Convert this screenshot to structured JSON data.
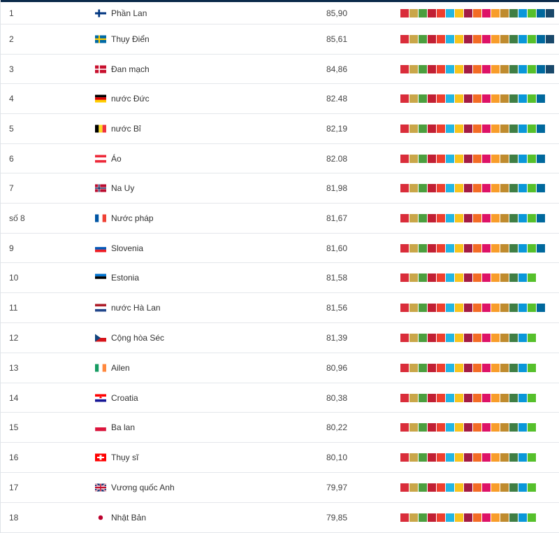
{
  "sdg_colors": [
    "#d92d3a",
    "#c9a649",
    "#4b9e3e",
    "#c11f33",
    "#ef3f2d",
    "#23b6e2",
    "#f8c21d",
    "#a31c44",
    "#f36c25",
    "#dd1367",
    "#f89d2a",
    "#bf8b2e",
    "#3f7e44",
    "#0a97d9",
    "#56c02b",
    "#00689d",
    "#19486a"
  ],
  "rows": [
    {
      "rank": "1",
      "flag": "finland-flag-icon",
      "country": "Phần Lan",
      "score": "85,90",
      "goals": [
        "#d92d3a",
        "#c9a649",
        "#4b9e3e",
        "#c11f33",
        "#ef3f2d",
        "#23b6e2",
        "#f8c21d",
        "#a31c44",
        "#f36c25",
        "#dd1367",
        "#f89d2a",
        "#bf8b2e",
        "#3f7e44",
        "#0a97d9",
        "#56c02b",
        "#00689d",
        "#19486a"
      ]
    },
    {
      "rank": "2",
      "flag": "sweden-flag-icon",
      "country": "Thụy Điển",
      "score": "85,61",
      "goals": [
        "#d92d3a",
        "#c9a649",
        "#4b9e3e",
        "#c11f33",
        "#ef3f2d",
        "#23b6e2",
        "#f8c21d",
        "#a31c44",
        "#f36c25",
        "#dd1367",
        "#f89d2a",
        "#bf8b2e",
        "#3f7e44",
        "#0a97d9",
        "#56c02b",
        "#00689d",
        "#19486a"
      ]
    },
    {
      "rank": "3",
      "flag": "denmark-flag-icon",
      "country": "Đan mạch",
      "score": "84,86",
      "goals": [
        "#d92d3a",
        "#c9a649",
        "#4b9e3e",
        "#c11f33",
        "#ef3f2d",
        "#23b6e2",
        "#f8c21d",
        "#a31c44",
        "#f36c25",
        "#dd1367",
        "#f89d2a",
        "#bf8b2e",
        "#3f7e44",
        "#0a97d9",
        "#56c02b",
        "#00689d",
        "#19486a"
      ]
    },
    {
      "rank": "4",
      "flag": "germany-flag-icon",
      "country": "nước Đức",
      "score": "82.48",
      "goals": [
        "#d92d3a",
        "#c9a649",
        "#4b9e3e",
        "#c11f33",
        "#ef3f2d",
        "#23b6e2",
        "#f8c21d",
        "#a31c44",
        "#f36c25",
        "#dd1367",
        "#f89d2a",
        "#bf8b2e",
        "#3f7e44",
        "#0a97d9",
        "#56c02b",
        "#00689d"
      ]
    },
    {
      "rank": "5",
      "flag": "belgium-flag-icon",
      "country": "nước Bỉ",
      "score": "82,19",
      "goals": [
        "#d92d3a",
        "#c9a649",
        "#4b9e3e",
        "#c11f33",
        "#ef3f2d",
        "#23b6e2",
        "#f8c21d",
        "#a31c44",
        "#f36c25",
        "#dd1367",
        "#f89d2a",
        "#bf8b2e",
        "#3f7e44",
        "#0a97d9",
        "#56c02b",
        "#00689d"
      ]
    },
    {
      "rank": "6",
      "flag": "austria-flag-icon",
      "country": "Áo",
      "score": "82.08",
      "goals": [
        "#d92d3a",
        "#c9a649",
        "#4b9e3e",
        "#c11f33",
        "#ef3f2d",
        "#23b6e2",
        "#f8c21d",
        "#a31c44",
        "#f36c25",
        "#dd1367",
        "#f89d2a",
        "#bf8b2e",
        "#3f7e44",
        "#0a97d9",
        "#56c02b",
        "#00689d"
      ]
    },
    {
      "rank": "7",
      "flag": "norway-flag-icon",
      "country": "Na Uy",
      "score": "81,98",
      "goals": [
        "#d92d3a",
        "#c9a649",
        "#4b9e3e",
        "#c11f33",
        "#ef3f2d",
        "#23b6e2",
        "#f8c21d",
        "#a31c44",
        "#f36c25",
        "#dd1367",
        "#f89d2a",
        "#bf8b2e",
        "#3f7e44",
        "#0a97d9",
        "#56c02b",
        "#00689d"
      ]
    },
    {
      "rank": "số 8",
      "flag": "france-flag-icon",
      "country": "Nước pháp",
      "score": "81,67",
      "goals": [
        "#d92d3a",
        "#c9a649",
        "#4b9e3e",
        "#c11f33",
        "#ef3f2d",
        "#23b6e2",
        "#f8c21d",
        "#a31c44",
        "#f36c25",
        "#dd1367",
        "#f89d2a",
        "#bf8b2e",
        "#3f7e44",
        "#0a97d9",
        "#56c02b",
        "#00689d"
      ]
    },
    {
      "rank": "9",
      "flag": "slovenia-flag-icon",
      "country": "Slovenia",
      "score": "81,60",
      "goals": [
        "#d92d3a",
        "#c9a649",
        "#4b9e3e",
        "#c11f33",
        "#ef3f2d",
        "#23b6e2",
        "#f8c21d",
        "#a31c44",
        "#f36c25",
        "#dd1367",
        "#f89d2a",
        "#bf8b2e",
        "#3f7e44",
        "#0a97d9",
        "#56c02b",
        "#00689d"
      ]
    },
    {
      "rank": "10",
      "flag": "estonia-flag-icon",
      "country": "Estonia",
      "score": "81,58",
      "goals": [
        "#d92d3a",
        "#c9a649",
        "#4b9e3e",
        "#c11f33",
        "#ef3f2d",
        "#23b6e2",
        "#f8c21d",
        "#a31c44",
        "#f36c25",
        "#dd1367",
        "#f89d2a",
        "#bf8b2e",
        "#3f7e44",
        "#0a97d9",
        "#56c02b"
      ]
    },
    {
      "rank": "11",
      "flag": "netherlands-flag-icon",
      "country": "nước Hà Lan",
      "score": "81,56",
      "goals": [
        "#d92d3a",
        "#c9a649",
        "#4b9e3e",
        "#c11f33",
        "#ef3f2d",
        "#23b6e2",
        "#f8c21d",
        "#a31c44",
        "#f36c25",
        "#dd1367",
        "#f89d2a",
        "#bf8b2e",
        "#3f7e44",
        "#0a97d9",
        "#56c02b",
        "#00689d"
      ]
    },
    {
      "rank": "12",
      "flag": "czech-flag-icon",
      "country": "Cộng hòa Séc",
      "score": "81,39",
      "goals": [
        "#d92d3a",
        "#c9a649",
        "#4b9e3e",
        "#c11f33",
        "#ef3f2d",
        "#23b6e2",
        "#f8c21d",
        "#a31c44",
        "#f36c25",
        "#dd1367",
        "#f89d2a",
        "#bf8b2e",
        "#3f7e44",
        "#0a97d9",
        "#56c02b"
      ]
    },
    {
      "rank": "13",
      "flag": "ireland-flag-icon",
      "country": "Ailen",
      "score": "80,96",
      "goals": [
        "#d92d3a",
        "#c9a649",
        "#4b9e3e",
        "#c11f33",
        "#ef3f2d",
        "#23b6e2",
        "#f8c21d",
        "#a31c44",
        "#f36c25",
        "#dd1367",
        "#f89d2a",
        "#bf8b2e",
        "#3f7e44",
        "#0a97d9",
        "#56c02b"
      ]
    },
    {
      "rank": "14",
      "flag": "croatia-flag-icon",
      "country": "Croatia",
      "score": "80,38",
      "goals": [
        "#d92d3a",
        "#c9a649",
        "#4b9e3e",
        "#c11f33",
        "#ef3f2d",
        "#23b6e2",
        "#f8c21d",
        "#a31c44",
        "#f36c25",
        "#dd1367",
        "#f89d2a",
        "#bf8b2e",
        "#3f7e44",
        "#0a97d9",
        "#56c02b"
      ]
    },
    {
      "rank": "15",
      "flag": "poland-flag-icon",
      "country": "Ba lan",
      "score": "80,22",
      "goals": [
        "#d92d3a",
        "#c9a649",
        "#4b9e3e",
        "#c11f33",
        "#ef3f2d",
        "#23b6e2",
        "#f8c21d",
        "#a31c44",
        "#f36c25",
        "#dd1367",
        "#f89d2a",
        "#bf8b2e",
        "#3f7e44",
        "#0a97d9",
        "#56c02b"
      ]
    },
    {
      "rank": "16",
      "flag": "switzerland-flag-icon",
      "country": "Thụy sĩ",
      "score": "80,10",
      "goals": [
        "#d92d3a",
        "#c9a649",
        "#4b9e3e",
        "#c11f33",
        "#ef3f2d",
        "#23b6e2",
        "#f8c21d",
        "#a31c44",
        "#f36c25",
        "#dd1367",
        "#f89d2a",
        "#bf8b2e",
        "#3f7e44",
        "#0a97d9",
        "#56c02b"
      ]
    },
    {
      "rank": "17",
      "flag": "uk-flag-icon",
      "country": "Vương quốc Anh",
      "score": "79,97",
      "goals": [
        "#d92d3a",
        "#c9a649",
        "#4b9e3e",
        "#c11f33",
        "#ef3f2d",
        "#23b6e2",
        "#f8c21d",
        "#a31c44",
        "#f36c25",
        "#dd1367",
        "#f89d2a",
        "#bf8b2e",
        "#3f7e44",
        "#0a97d9",
        "#56c02b"
      ]
    },
    {
      "rank": "18",
      "flag": "japan-flag-icon",
      "country": "Nhật Bản",
      "score": "79,85",
      "goals": [
        "#d92d3a",
        "#c9a649",
        "#4b9e3e",
        "#c11f33",
        "#ef3f2d",
        "#23b6e2",
        "#f8c21d",
        "#a31c44",
        "#f36c25",
        "#dd1367",
        "#f89d2a",
        "#bf8b2e",
        "#3f7e44",
        "#0a97d9",
        "#56c02b"
      ]
    }
  ]
}
